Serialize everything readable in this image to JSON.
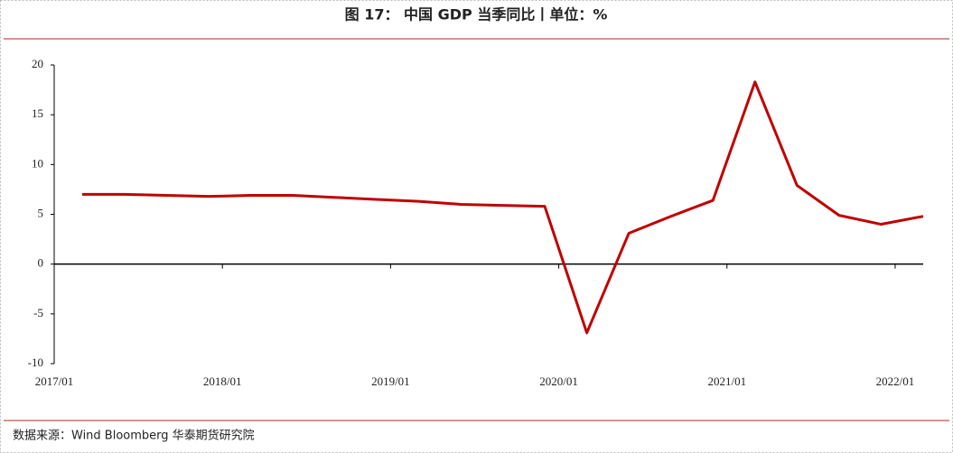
{
  "chart_data": {
    "type": "line",
    "title": "图 17：  中国 GDP 当季同比丨单位：%",
    "source": "数据来源：Wind Bloomberg  华泰期货研究院",
    "x": [
      "2017/03",
      "2017/06",
      "2017/09",
      "2017/12",
      "2018/03",
      "2018/06",
      "2018/09",
      "2018/12",
      "2019/03",
      "2019/06",
      "2019/09",
      "2019/12",
      "2020/03",
      "2020/06",
      "2020/09",
      "2020/12",
      "2021/03",
      "2021/06",
      "2021/09",
      "2021/12",
      "2022/03"
    ],
    "series": [
      {
        "color": "#c00000",
        "values": [
          7.0,
          7.0,
          6.9,
          6.8,
          6.9,
          6.9,
          6.7,
          6.5,
          6.3,
          6.0,
          5.9,
          5.8,
          -6.9,
          3.1,
          4.8,
          6.4,
          18.3,
          7.9,
          4.9,
          4.0,
          4.8
        ]
      }
    ],
    "xlim": [
      "2017/01",
      "2022/03"
    ],
    "xticks": [
      "2017/01",
      "2018/01",
      "2019/01",
      "2020/01",
      "2021/01",
      "2022/01"
    ],
    "ylim": [
      -10,
      20
    ],
    "yticks": [
      -10,
      -5,
      0,
      5,
      10,
      15,
      20
    ]
  }
}
